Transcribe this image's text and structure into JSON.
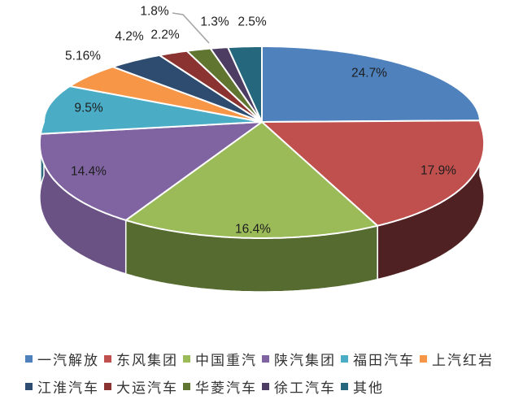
{
  "background_color": "#FFFFFF",
  "chart_data": {
    "type": "pie",
    "style": "3d-pie",
    "title": "",
    "legend_position": "bottom",
    "labels_shown": "percent",
    "slices": [
      {
        "label": "一汽解放",
        "value": 24.7,
        "display": "24.7%",
        "color": "#4F81BD"
      },
      {
        "label": "东风集团",
        "value": 17.9,
        "display": "17.9%",
        "color": "#C0504D"
      },
      {
        "label": "中国重汽",
        "value": 16.4,
        "display": "16.4%",
        "color": "#9BBB59"
      },
      {
        "label": "陕汽集团",
        "value": 14.4,
        "display": "14.4%",
        "color": "#8064A2"
      },
      {
        "label": "福田汽车",
        "value": 9.5,
        "display": "9.5%",
        "color": "#4BACC6"
      },
      {
        "label": "上汽红岩",
        "value": 5.16,
        "display": "5.16%",
        "color": "#F79646"
      },
      {
        "label": "江淮汽车",
        "value": 4.2,
        "display": "4.2%",
        "color": "#2E4C70"
      },
      {
        "label": "大运汽车",
        "value": 2.2,
        "display": "2.2%",
        "color": "#8B3330"
      },
      {
        "label": "华菱汽车",
        "value": 1.8,
        "display": "1.8%",
        "color": "#5F7530"
      },
      {
        "label": "徐工汽车",
        "value": 1.3,
        "display": "1.3%",
        "color": "#4D3D63"
      },
      {
        "label": "其他",
        "value": 2.5,
        "display": "2.5%",
        "color": "#25687D"
      }
    ]
  }
}
